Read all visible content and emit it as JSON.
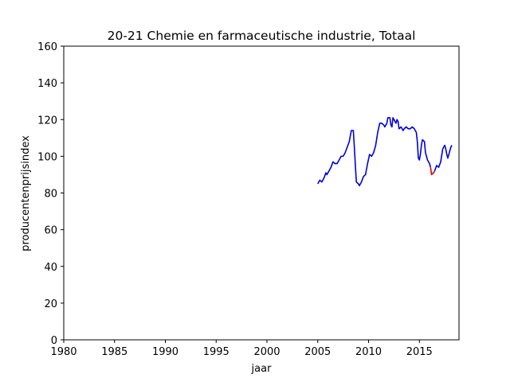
{
  "chart_data": {
    "type": "line",
    "title": "20-21 Chemie en farmaceutische industrie, Totaal",
    "xlabel": "jaar",
    "ylabel": "producentenprijsindex",
    "xlim": [
      1980,
      2018.9
    ],
    "ylim": [
      0,
      160
    ],
    "xticks": [
      1980,
      1985,
      1990,
      1995,
      2000,
      2005,
      2010,
      2015
    ],
    "yticks": [
      0,
      20,
      40,
      60,
      80,
      100,
      120,
      140,
      160
    ],
    "grid": false,
    "legend": "none",
    "series": [
      {
        "color": "#0000dd",
        "points": [
          [
            2005.0,
            85
          ],
          [
            2005.2,
            87
          ],
          [
            2005.4,
            86
          ],
          [
            2005.6,
            88
          ],
          [
            2005.8,
            91
          ],
          [
            2005.9,
            90
          ],
          [
            2006.1,
            92
          ],
          [
            2006.3,
            94
          ],
          [
            2006.5,
            97
          ],
          [
            2006.7,
            96
          ],
          [
            2006.9,
            96
          ],
          [
            2007.1,
            98
          ],
          [
            2007.3,
            100
          ],
          [
            2007.5,
            100
          ],
          [
            2007.7,
            102
          ],
          [
            2007.9,
            105
          ],
          [
            2008.1,
            108
          ],
          [
            2008.3,
            114
          ],
          [
            2008.5,
            114
          ],
          [
            2008.6,
            105
          ],
          [
            2008.7,
            95
          ],
          [
            2008.8,
            86
          ],
          [
            2009.0,
            85
          ],
          [
            2009.1,
            84
          ],
          [
            2009.3,
            86
          ],
          [
            2009.5,
            89
          ],
          [
            2009.7,
            90
          ],
          [
            2009.9,
            96
          ],
          [
            2010.1,
            101
          ],
          [
            2010.3,
            100
          ],
          [
            2010.5,
            102
          ],
          [
            2010.7,
            106
          ],
          [
            2010.9,
            113
          ],
          [
            2011.1,
            118
          ],
          [
            2011.3,
            118
          ],
          [
            2011.5,
            117
          ],
          [
            2011.6,
            116
          ],
          [
            2011.8,
            118
          ],
          [
            2011.9,
            121
          ],
          [
            2012.1,
            121
          ],
          [
            2012.2,
            117
          ],
          [
            2012.3,
            116
          ],
          [
            2012.4,
            121
          ],
          [
            2012.6,
            119
          ],
          [
            2012.7,
            118
          ],
          [
            2012.8,
            120
          ],
          [
            2012.9,
            119
          ],
          [
            2013.0,
            115
          ],
          [
            2013.2,
            116
          ],
          [
            2013.4,
            114
          ],
          [
            2013.5,
            115
          ],
          [
            2013.7,
            116
          ],
          [
            2013.9,
            115
          ],
          [
            2014.1,
            115
          ],
          [
            2014.3,
            116
          ],
          [
            2014.5,
            115
          ],
          [
            2014.6,
            114
          ],
          [
            2014.7,
            113
          ],
          [
            2014.8,
            108
          ],
          [
            2014.9,
            99
          ],
          [
            2015.0,
            98
          ],
          [
            2015.1,
            101
          ],
          [
            2015.2,
            106
          ],
          [
            2015.3,
            109
          ],
          [
            2015.5,
            108
          ],
          [
            2015.6,
            102
          ],
          [
            2015.8,
            98
          ],
          [
            2016.0,
            96
          ],
          [
            2016.1,
            94
          ]
        ]
      },
      {
        "color": "#dd0000",
        "points": [
          [
            2016.1,
            94
          ],
          [
            2016.2,
            90
          ],
          [
            2016.4,
            91
          ],
          [
            2016.5,
            92
          ]
        ]
      },
      {
        "color": "#0000dd",
        "points": [
          [
            2016.5,
            92
          ],
          [
            2016.7,
            95
          ],
          [
            2016.9,
            94
          ],
          [
            2017.1,
            97
          ],
          [
            2017.3,
            104
          ],
          [
            2017.5,
            106
          ],
          [
            2017.6,
            104
          ],
          [
            2017.7,
            101
          ],
          [
            2017.8,
            99
          ],
          [
            2018.0,
            103
          ],
          [
            2018.1,
            105
          ],
          [
            2018.2,
            106
          ]
        ]
      }
    ]
  }
}
